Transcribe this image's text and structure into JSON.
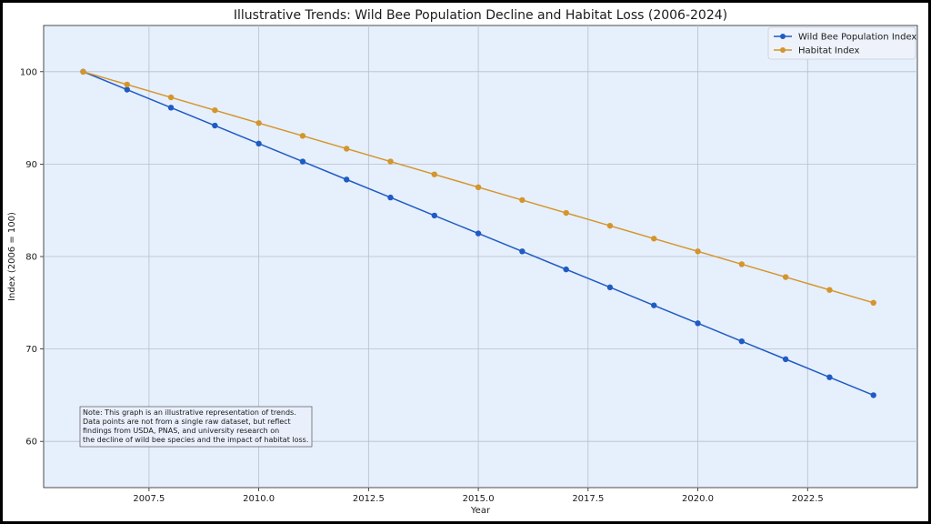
{
  "chart_data": {
    "type": "line",
    "title": "Illustrative Trends: Wild Bee Population Decline and Habitat Loss (2006-2024)",
    "xlabel": "Year",
    "ylabel": "Index (2006 = 100)",
    "xlim": [
      2005.1,
      2025.0
    ],
    "ylim": [
      55,
      105
    ],
    "x_ticks": [
      2007.5,
      2010.0,
      2012.5,
      2015.0,
      2017.5,
      2020.0,
      2022.5
    ],
    "x_tick_labels": [
      "2007.5",
      "2010.0",
      "2012.5",
      "2015.0",
      "2017.5",
      "2020.0",
      "2022.5"
    ],
    "y_ticks": [
      60,
      70,
      80,
      90,
      100
    ],
    "y_tick_labels": [
      "60",
      "70",
      "80",
      "90",
      "100"
    ],
    "grid": true,
    "legend_position": "top-right",
    "x": [
      2006,
      2007,
      2008,
      2009,
      2010,
      2011,
      2012,
      2013,
      2014,
      2015,
      2016,
      2017,
      2018,
      2019,
      2020,
      2021,
      2022,
      2023,
      2024
    ],
    "series": [
      {
        "name": "Wild Bee Population Index",
        "color": "#1f5bc4",
        "values": [
          100.0,
          98.06,
          96.11,
          94.17,
          92.22,
          90.28,
          88.33,
          86.39,
          84.44,
          82.5,
          80.56,
          78.61,
          76.67,
          74.72,
          72.78,
          70.83,
          68.89,
          66.94,
          65.0
        ]
      },
      {
        "name": "Habitat Index",
        "color": "#d4952b",
        "values": [
          100.0,
          98.61,
          97.22,
          95.83,
          94.44,
          93.06,
          91.67,
          90.28,
          88.89,
          87.5,
          86.11,
          84.72,
          83.33,
          81.94,
          80.56,
          79.17,
          77.78,
          76.39,
          75.0
        ]
      }
    ],
    "annotation": [
      "Note: This graph is an illustrative representation of trends.",
      "Data points are not from a single raw dataset, but reflect",
      "findings from USDA, PNAS, and university research on",
      "the decline of wild bee species and the impact of habitat loss."
    ]
  },
  "colors": {
    "plot_background": "#e6effc",
    "grid": "#b8bfcc"
  }
}
